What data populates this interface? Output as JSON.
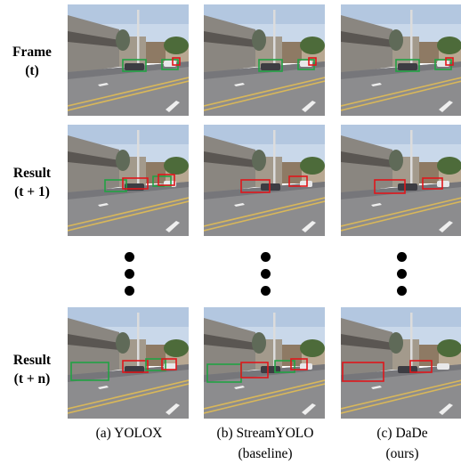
{
  "rows": [
    {
      "label_line1": "Frame",
      "label_line2": "(t)"
    },
    {
      "label_line1": "Result",
      "label_line2": "(t + 1)"
    },
    {
      "label_line1": "Result",
      "label_line2": "(t + n)"
    }
  ],
  "columns": [
    {
      "caption_line1": "(a) YOLOX",
      "caption_line2": ""
    },
    {
      "caption_line1": "(b) StreamYOLO",
      "caption_line2": "(baseline)"
    },
    {
      "caption_line1": "(c) DaDe",
      "caption_line2": "(ours)"
    }
  ],
  "colors": {
    "ground_truth_box": "#22a244",
    "prediction_box": "#e0161b"
  }
}
